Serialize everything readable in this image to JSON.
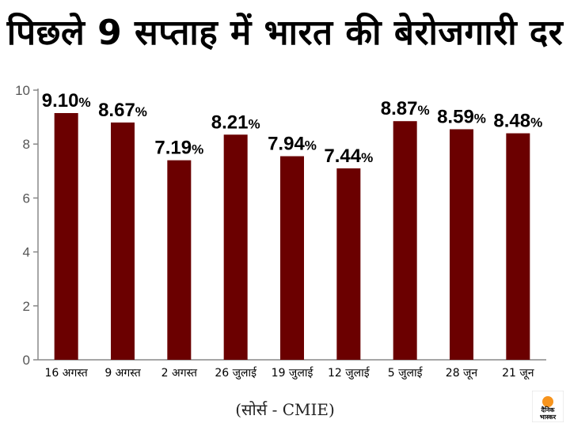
{
  "title": "पिछले 9 सप्ताह में भारत की बेरोजगारी दर",
  "source": "(सोर्स - CMIE)",
  "logo": {
    "line1": "दैनिक",
    "line2": "भास्कर"
  },
  "colors": {
    "bar": "#6b0000",
    "axis": "#888888",
    "logo_orange": "#f7941d"
  },
  "chart_data": {
    "type": "bar",
    "categories": [
      "16 अगस्त",
      "9 अगस्त",
      "2 अगस्त",
      "26 जुलाई",
      "19 जुलाई",
      "12 जुलाई",
      "5 जुलाई",
      "28 जून",
      "21 जून"
    ],
    "values": [
      9.1,
      8.67,
      7.19,
      8.21,
      7.94,
      7.44,
      8.87,
      8.59,
      8.48
    ],
    "bar_heights": [
      9.15,
      8.8,
      7.4,
      8.35,
      7.55,
      7.1,
      8.85,
      8.55,
      8.4
    ],
    "labels": [
      "9.10%",
      "8.67%",
      "7.19%",
      "8.21%",
      "7.94%",
      "7.44%",
      "8.87%",
      "8.59%",
      "8.48%"
    ],
    "yticks": [
      0,
      2,
      4,
      6,
      8,
      10
    ],
    "ylim": [
      0,
      10
    ],
    "title": "पिछले 9 सप्ताह में भारत की बेरोजगारी दर",
    "xlabel": "",
    "ylabel": "",
    "grid": false,
    "legend": "none"
  }
}
